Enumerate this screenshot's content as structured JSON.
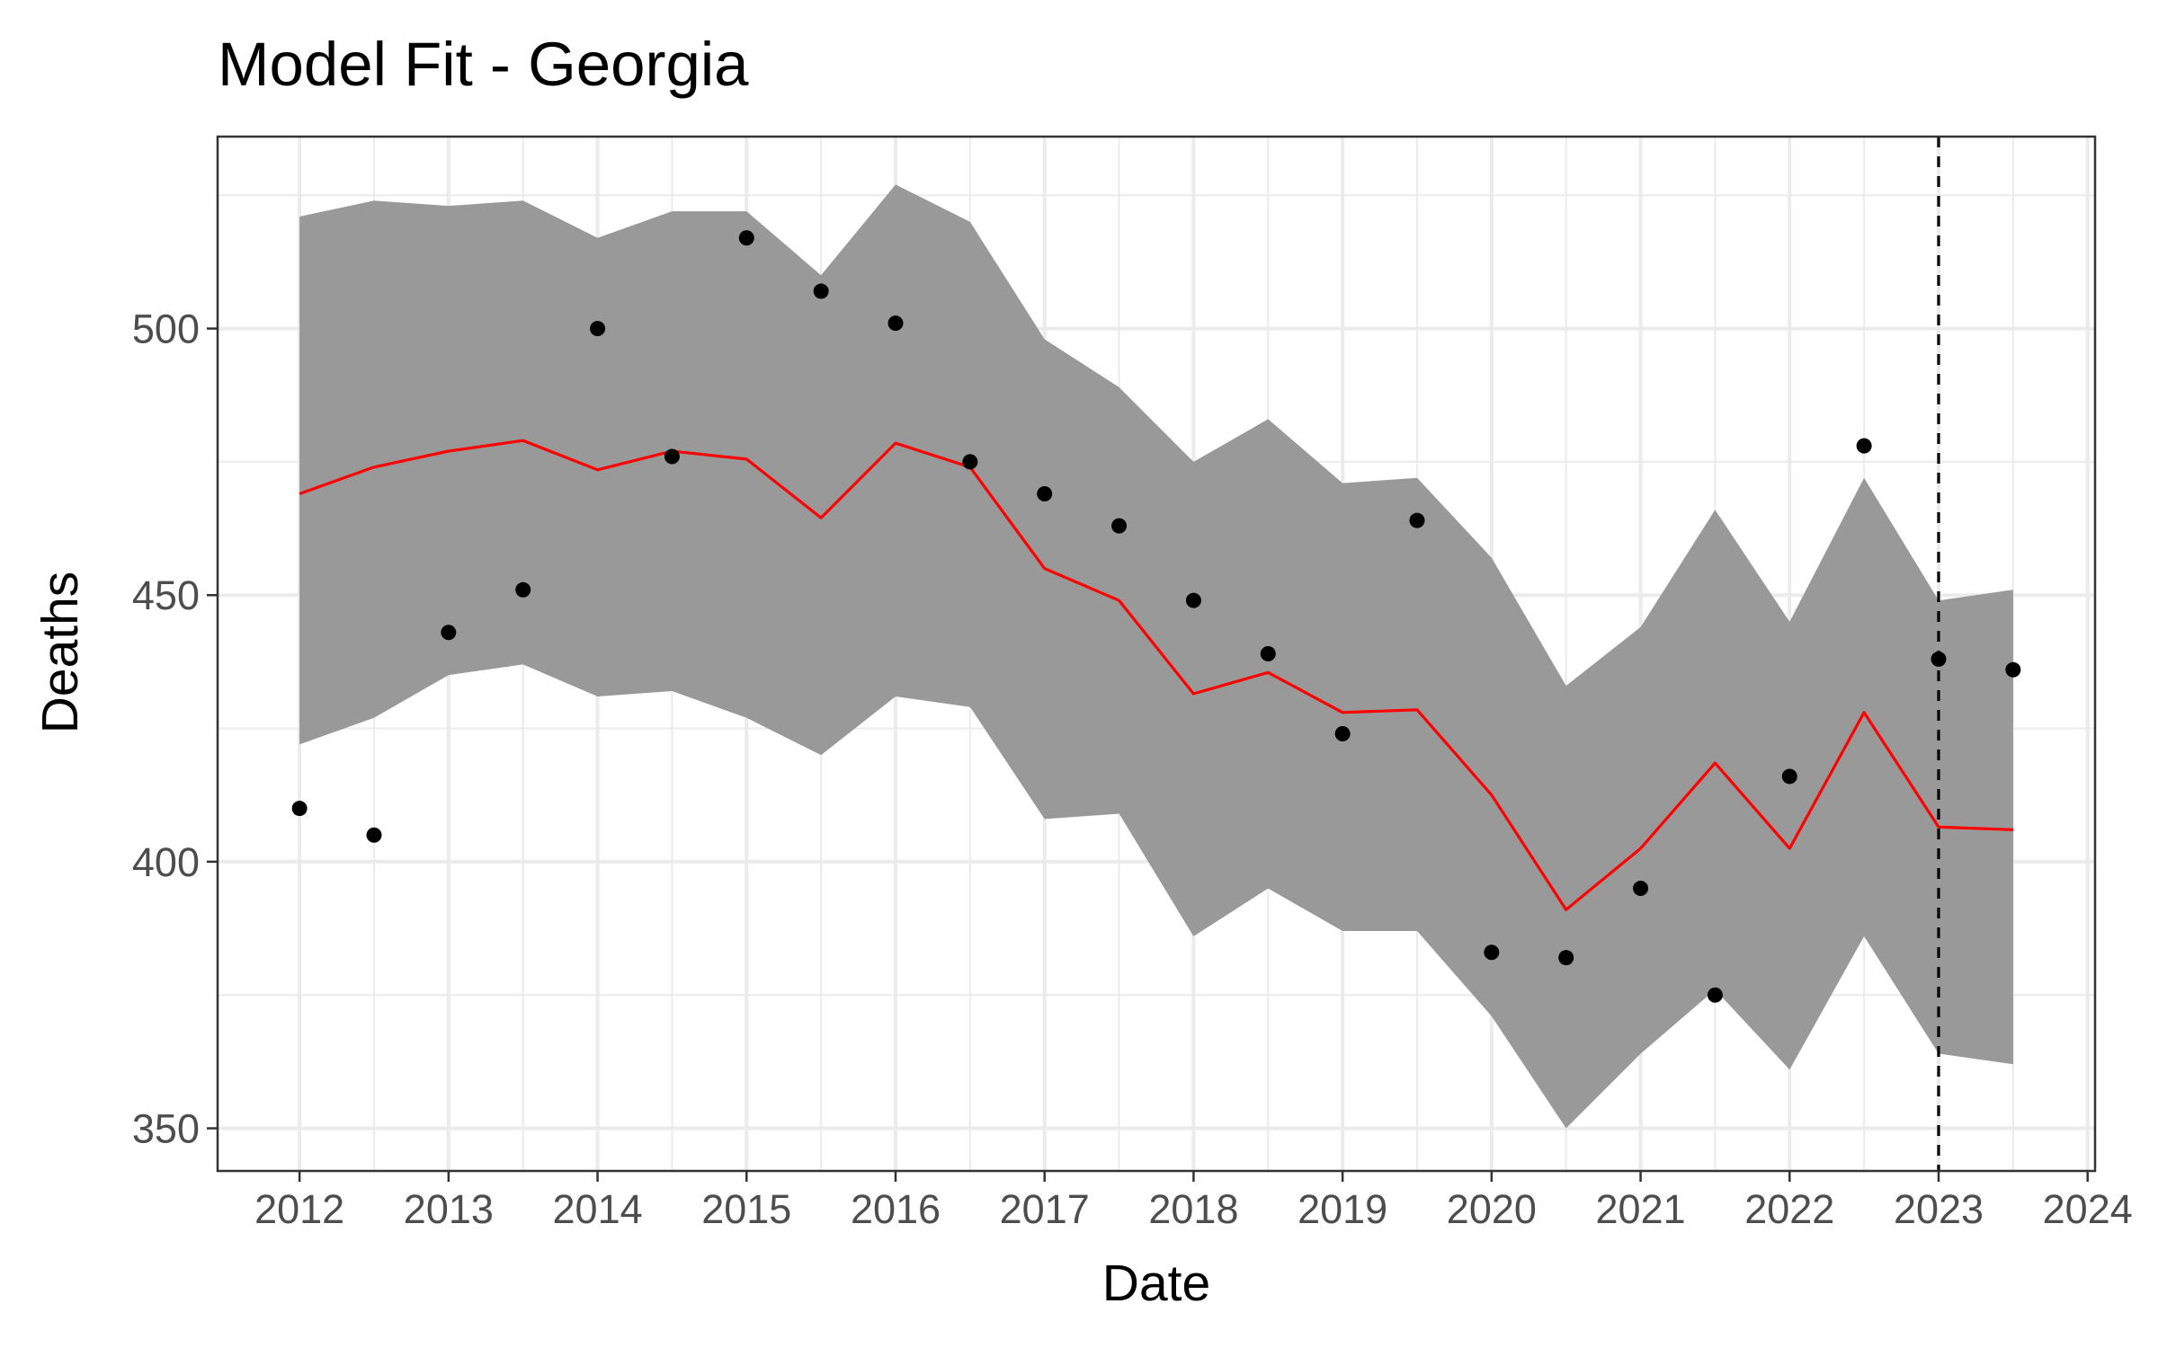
{
  "chart_data": {
    "type": "line",
    "title": "Model Fit - Georgia",
    "xlabel": "Date",
    "ylabel": "Deaths",
    "xlim": [
      2011.45,
      2024.05
    ],
    "ylim": [
      342,
      536
    ],
    "x_ticks": [
      2012,
      2013,
      2014,
      2015,
      2016,
      2017,
      2018,
      2019,
      2020,
      2021,
      2022,
      2023,
      2024
    ],
    "y_ticks": [
      350,
      400,
      450,
      500
    ],
    "y_minor_ticks": [
      375,
      425,
      475,
      525
    ],
    "grid": true,
    "legend": "none",
    "vline_x": 2023,
    "colors": {
      "fit": "#ff0000",
      "band": "#999999",
      "observed": "#000000",
      "vline": "#000000"
    },
    "x": [
      2012,
      2012.5,
      2013,
      2013.5,
      2014,
      2014.5,
      2015,
      2015.5,
      2016,
      2016.5,
      2017,
      2017.5,
      2018,
      2018.5,
      2019,
      2019.5,
      2020,
      2020.5,
      2021,
      2021.5,
      2022,
      2022.5,
      2023,
      2023.5
    ],
    "series": [
      {
        "values": [
          410,
          405,
          443,
          451,
          500,
          476,
          517,
          507,
          501,
          475,
          469,
          463,
          449,
          439,
          424,
          464,
          383,
          382,
          395,
          375,
          416,
          478,
          438,
          436
        ]
      },
      {
        "values": [
          469,
          474,
          477,
          479,
          473.5,
          477,
          475.5,
          464.5,
          478.5,
          474,
          455,
          449,
          431.5,
          435.5,
          428,
          428.5,
          412.5,
          391,
          402.5,
          418.5,
          402.5,
          428,
          406.5,
          406
        ]
      },
      {
        "values": [
          422,
          427,
          435,
          437,
          431,
          432,
          427,
          420,
          431,
          429,
          408,
          409,
          386,
          395,
          387,
          387,
          371,
          350,
          364,
          376,
          361,
          386,
          364,
          362
        ]
      },
      {
        "values": [
          521,
          524,
          523,
          524,
          517,
          522,
          522,
          510,
          527,
          520,
          498,
          489,
          475,
          483,
          471,
          472,
          457,
          433,
          444,
          466,
          445,
          472,
          449,
          451
        ]
      }
    ]
  }
}
